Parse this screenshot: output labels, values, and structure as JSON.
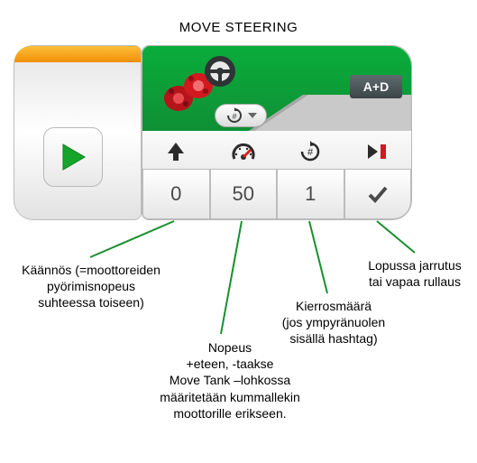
{
  "title": "MOVE STEERING",
  "ports_label": "A+D",
  "inputs": {
    "steering": {
      "value": "0"
    },
    "speed": {
      "value": "50"
    },
    "rotations": {
      "value": "1"
    },
    "brake": {
      "value": "✓"
    }
  },
  "callouts": {
    "steering": "Käännös (=moottoreiden\npyörimisnopeus\nsuhteessa toiseen)",
    "speed": "Nopeus\n+eteen, -taakse\nMove  Tank –lohkossa\nmääritetään kummallekin\nmoottorille erikseen.",
    "rotations": "Kierrosmäärä\n(jos ympyränuolen\nsisällä hashtag)",
    "brake": "Lopussa jarrutus\ntai vapaa rullaus"
  },
  "colors": {
    "green_line": "#1a8f2e",
    "play": "#15a52b",
    "text": "#000000"
  },
  "icons": {
    "steering": "arrow-up",
    "speed": "speedometer",
    "rotations": "rotation-hash",
    "brake": "play-stop"
  }
}
